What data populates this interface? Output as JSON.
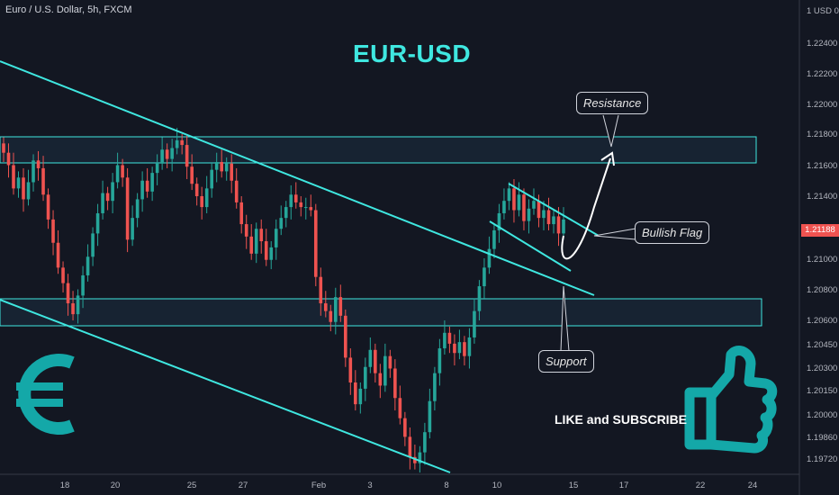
{
  "header": {
    "symbol": "Euro / U.S. Dollar, 5h, FXCM",
    "title": "EUR-USD",
    "unit_label": "1 USD 0"
  },
  "annotations": {
    "resistance": "Resistance",
    "bullish_flag": "Bullish Flag",
    "support": "Support",
    "subscribe": "LIKE and SUBSCRIBE"
  },
  "current_price": "1.21188",
  "colors": {
    "background": "#131722",
    "up_candle": "#26a69a",
    "down_candle": "#ef5350",
    "trendline": "#3fe7e0",
    "zone_fill": "#1c3447",
    "icon": "#14a8a8"
  },
  "icons": [
    "euro-icon",
    "thumbs-up-icon"
  ],
  "chart_data": {
    "type": "candlestick",
    "x_ticks": [
      "18",
      "20",
      "25",
      "27",
      "Feb",
      "3",
      "8",
      "10",
      "15",
      "17",
      "22",
      "24"
    ],
    "y_ticks": [
      "1.22400",
      "1.22200",
      "1.22000",
      "1.21800",
      "1.21600",
      "1.21400",
      "1.21000",
      "1.20800",
      "1.20600",
      "1.20450",
      "1.20300",
      "1.20150",
      "1.20000",
      "1.19860",
      "1.19720"
    ],
    "resistance_zone": [
      1.2163,
      1.2178
    ],
    "support_zone": [
      1.2057,
      1.2072
    ],
    "closes": [
      1.2168,
      1.216,
      1.2145,
      1.2152,
      1.2138,
      1.2149,
      1.2163,
      1.2158,
      1.2141,
      1.2125,
      1.211,
      1.2094,
      1.2084,
      1.2071,
      1.2064,
      1.2076,
      1.2089,
      1.2101,
      1.2116,
      1.2129,
      1.2142,
      1.2137,
      1.2149,
      1.216,
      1.2152,
      1.2112,
      1.2126,
      1.2138,
      1.215,
      1.2143,
      1.2155,
      1.2161,
      1.217,
      1.2164,
      1.2171,
      1.2176,
      1.2173,
      1.2159,
      1.2148,
      1.214,
      1.2133,
      1.2145,
      1.2157,
      1.2162,
      1.2156,
      1.2161,
      1.215,
      1.2136,
      1.2122,
      1.2114,
      1.2103,
      1.2119,
      1.2111,
      1.2099,
      1.2107,
      1.2119,
      1.2126,
      1.2133,
      1.2141,
      1.2136,
      1.2133,
      1.2133,
      1.2131,
      1.2088,
      1.2071,
      1.2066,
      1.2059,
      1.2075,
      1.2063,
      1.2036,
      1.202,
      1.2006,
      1.2016,
      1.203,
      1.2041,
      1.2026,
      1.2018,
      1.2037,
      1.2029,
      1.201,
      1.1997,
      1.1985,
      1.1972,
      1.1968,
      1.1975,
      1.1988,
      1.2008,
      1.2026,
      1.2042,
      1.2052,
      1.2045,
      1.2039,
      1.2046,
      1.2037,
      1.2049,
      1.2066,
      1.2082,
      1.2094,
      1.2106,
      1.2118,
      1.2129,
      1.2137,
      1.2145,
      1.2131,
      1.2141,
      1.2124,
      1.2132,
      1.2137,
      1.2126,
      1.2131,
      1.2122,
      1.2127,
      1.2116,
      1.2125
    ]
  }
}
